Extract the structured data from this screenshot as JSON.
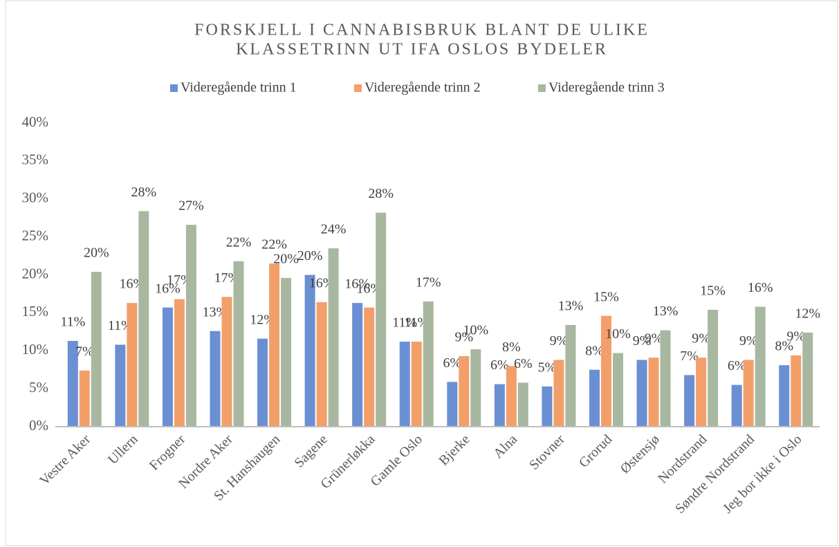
{
  "chart_data": {
    "type": "bar",
    "title": [
      "FORSKJELL I CANNABISBRUK BLANT DE ULIKE",
      "KLASSETRINN UT IFA OSLOS BYDELER"
    ],
    "categories": [
      "Vestre Aker",
      "Ullern",
      "Frogner",
      "Nordre Aker",
      "St. Hanshaugen",
      "Sagene",
      "Grünerløkka",
      "Gamle Oslo",
      "Bjerke",
      "Alna",
      "Stovner",
      "Grorud",
      "Østensjø",
      "Nordstrand",
      "Søndre Nordstrand",
      "Jeg bor ikke i Oslo"
    ],
    "series": [
      {
        "name": "Videregående trinn 1",
        "color": "#6b8fd3",
        "values": [
          11.3,
          10.8,
          15.7,
          12.6,
          11.6,
          20.0,
          16.3,
          11.2,
          5.9,
          5.6,
          5.3,
          7.5,
          8.8,
          6.8,
          5.5,
          8.1
        ],
        "value_labels": [
          "11%",
          "11%",
          "16%",
          "13%",
          "12%",
          "20%",
          "16%",
          "11%",
          "6%",
          "6%",
          "5%",
          "8%",
          "9%",
          "7%",
          "6%",
          "8%"
        ]
      },
      {
        "name": "Videregående trinn 2",
        "color": "#f39f6a",
        "values": [
          7.4,
          16.3,
          16.8,
          17.1,
          21.5,
          16.4,
          15.7,
          11.2,
          9.3,
          8.0,
          8.8,
          14.6,
          9.1,
          9.1,
          8.8,
          9.4
        ],
        "value_labels": [
          "7%",
          "16%",
          "17%",
          "17%",
          "22%",
          "16%",
          "16%",
          "11%",
          "9%",
          "8%",
          "9%",
          "15%",
          "9%",
          "9%",
          "9%",
          "9%"
        ]
      },
      {
        "name": "Videregående trinn 3",
        "color": "#a8b8a0",
        "values": [
          20.4,
          28.4,
          26.6,
          21.8,
          19.6,
          23.5,
          28.2,
          16.5,
          10.2,
          5.8,
          13.4,
          9.7,
          12.7,
          15.4,
          15.8,
          12.4
        ],
        "value_labels": [
          "20%",
          "28%",
          "27%",
          "22%",
          "20%",
          "24%",
          "28%",
          "17%",
          "10%",
          "6%",
          "13%",
          "10%",
          "13%",
          "15%",
          "16%",
          "12%"
        ]
      }
    ],
    "ylim": [
      0,
      40
    ],
    "yticks": [
      {
        "value": 0,
        "label": "0%"
      },
      {
        "value": 5,
        "label": "5%"
      },
      {
        "value": 10,
        "label": "10%"
      },
      {
        "value": 15,
        "label": "15%"
      },
      {
        "value": 20,
        "label": "20%"
      },
      {
        "value": 25,
        "label": "25%"
      },
      {
        "value": 30,
        "label": "30%"
      },
      {
        "value": 35,
        "label": "35%"
      },
      {
        "value": 40,
        "label": "40%"
      }
    ],
    "grid": false,
    "legend": "top"
  }
}
